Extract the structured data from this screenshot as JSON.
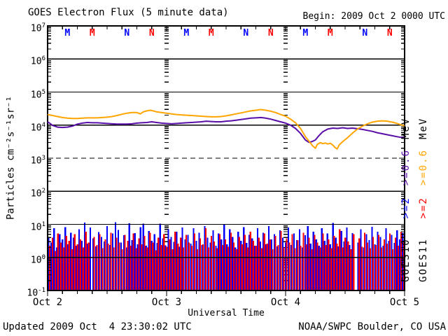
{
  "footer": {
    "updated": "Updated 2009 Oct  4 23:30:02 UTC",
    "credit": "NOAA/SWPC Boulder, CO USA"
  },
  "chart_data": {
    "type": "line",
    "title": "GOES Electron Flux (5 minute data)",
    "begin_label": "Begin: 2009 Oct 2 0000 UTC",
    "xlabel": "Universal Time",
    "ylabel": "Particles cm⁻²s⁻¹sr⁻¹",
    "x_axis": {
      "hours_total": 72,
      "minor_tick_hours": 3,
      "day_labels": [
        "Oct 2",
        "Oct 3",
        "Oct 4",
        "Oct 5"
      ],
      "day_start_hours": [
        0,
        24,
        48,
        72
      ]
    },
    "y_axis": {
      "scale": "log10",
      "min_exp": -1,
      "max_exp": 7,
      "tick_exps": [
        7,
        6,
        5,
        4,
        3,
        2,
        1,
        0,
        -1
      ]
    },
    "gridlines": {
      "solid_exps": [
        6,
        5,
        4,
        2,
        1,
        0
      ],
      "dashed_exps": [
        3
      ],
      "vertical_day_hours": [
        24,
        48
      ]
    },
    "colors": {
      "goes10_e2": "#0000FF",
      "goes10_e06": "#5A0EA8",
      "goes11_e2": "#FF0000",
      "goes11_e06": "#FFA500",
      "axis": "#000000",
      "background": "#FFFFFF"
    },
    "markers": {
      "meaning": "satellite local midnight (M) and local noon (N)",
      "per_day_hours": [
        4,
        9,
        16,
        21
      ],
      "letters": [
        "M",
        "M",
        "N",
        "N"
      ],
      "color_keys": [
        "goes10_e2",
        "goes11_e2",
        "goes10_e2",
        "goes11_e2"
      ],
      "y_log": 6.81
    },
    "series": [
      {
        "name": "GOES10 >=0.6 MeV",
        "style": "line",
        "color_key": "goes10_e06",
        "points_h_log10": [
          [
            0,
            4.1
          ],
          [
            0.5,
            4.05
          ],
          [
            1,
            3.99
          ],
          [
            2,
            3.94
          ],
          [
            3,
            3.93
          ],
          [
            4,
            3.94
          ],
          [
            5,
            3.97
          ],
          [
            6,
            4.03
          ],
          [
            7,
            4.06
          ],
          [
            8,
            4.08
          ],
          [
            9,
            4.07
          ],
          [
            10,
            4.07
          ],
          [
            11,
            4.06
          ],
          [
            12,
            4.05
          ],
          [
            13,
            4.04
          ],
          [
            14,
            4.03
          ],
          [
            15,
            4.03
          ],
          [
            16,
            4.03
          ],
          [
            17,
            4.04
          ],
          [
            18,
            4.06
          ],
          [
            19,
            4.07
          ],
          [
            20,
            4.08
          ],
          [
            21,
            4.1
          ],
          [
            22,
            4.08
          ],
          [
            23,
            4.06
          ],
          [
            24,
            4.05
          ],
          [
            25,
            4.04
          ],
          [
            26,
            4.05
          ],
          [
            27,
            4.06
          ],
          [
            28,
            4.07
          ],
          [
            29,
            4.08
          ],
          [
            30,
            4.09
          ],
          [
            31,
            4.1
          ],
          [
            32,
            4.12
          ],
          [
            33,
            4.11
          ],
          [
            34,
            4.1
          ],
          [
            35,
            4.1
          ],
          [
            36,
            4.12
          ],
          [
            37,
            4.13
          ],
          [
            38,
            4.15
          ],
          [
            39,
            4.17
          ],
          [
            40,
            4.19
          ],
          [
            41,
            4.21
          ],
          [
            42,
            4.22
          ],
          [
            43,
            4.23
          ],
          [
            44,
            4.21
          ],
          [
            45,
            4.18
          ],
          [
            46,
            4.14
          ],
          [
            47,
            4.1
          ],
          [
            48,
            4.06
          ],
          [
            49,
            4.0
          ],
          [
            50,
            3.9
          ],
          [
            51,
            3.75
          ],
          [
            52,
            3.55
          ],
          [
            52.7,
            3.48
          ],
          [
            53.3,
            3.5
          ],
          [
            54,
            3.55
          ],
          [
            54.7,
            3.68
          ],
          [
            55.5,
            3.8
          ],
          [
            56.5,
            3.88
          ],
          [
            57.5,
            3.91
          ],
          [
            58.5,
            3.9
          ],
          [
            59.5,
            3.92
          ],
          [
            60.5,
            3.9
          ],
          [
            61.5,
            3.91
          ],
          [
            62.5,
            3.89
          ],
          [
            63.5,
            3.87
          ],
          [
            64.5,
            3.84
          ],
          [
            65.5,
            3.81
          ],
          [
            66.5,
            3.77
          ],
          [
            67.5,
            3.74
          ],
          [
            68.5,
            3.71
          ],
          [
            69.5,
            3.68
          ],
          [
            70.5,
            3.65
          ],
          [
            71.2,
            3.63
          ],
          [
            72,
            3.64
          ]
        ]
      },
      {
        "name": "GOES11 >=0.6 MeV",
        "style": "line",
        "color_key": "goes11_e06",
        "points_h_log10": [
          [
            0,
            4.32
          ],
          [
            1,
            4.29
          ],
          [
            2,
            4.26
          ],
          [
            3,
            4.23
          ],
          [
            4,
            4.21
          ],
          [
            5,
            4.2
          ],
          [
            6,
            4.2
          ],
          [
            7,
            4.21
          ],
          [
            8,
            4.22
          ],
          [
            9,
            4.22
          ],
          [
            10,
            4.22
          ],
          [
            11,
            4.23
          ],
          [
            12,
            4.24
          ],
          [
            13,
            4.26
          ],
          [
            14,
            4.29
          ],
          [
            15,
            4.33
          ],
          [
            16,
            4.36
          ],
          [
            17,
            4.38
          ],
          [
            18,
            4.38
          ],
          [
            18.7,
            4.34
          ],
          [
            19.3,
            4.4
          ],
          [
            20,
            4.43
          ],
          [
            20.7,
            4.45
          ],
          [
            21.3,
            4.43
          ],
          [
            22,
            4.4
          ],
          [
            23,
            4.38
          ],
          [
            24,
            4.36
          ],
          [
            25,
            4.34
          ],
          [
            26,
            4.32
          ],
          [
            27,
            4.31
          ],
          [
            28,
            4.3
          ],
          [
            29,
            4.29
          ],
          [
            30,
            4.28
          ],
          [
            31,
            4.27
          ],
          [
            32,
            4.26
          ],
          [
            33,
            4.25
          ],
          [
            34,
            4.25
          ],
          [
            35,
            4.26
          ],
          [
            36,
            4.28
          ],
          [
            37,
            4.31
          ],
          [
            38,
            4.34
          ],
          [
            39,
            4.37
          ],
          [
            40,
            4.4
          ],
          [
            41,
            4.43
          ],
          [
            42,
            4.45
          ],
          [
            43,
            4.47
          ],
          [
            43.5,
            4.46
          ],
          [
            44,
            4.45
          ],
          [
            45,
            4.42
          ],
          [
            46,
            4.38
          ],
          [
            47,
            4.32
          ],
          [
            48,
            4.27
          ],
          [
            49,
            4.18
          ],
          [
            50,
            4.07
          ],
          [
            51,
            3.9
          ],
          [
            52,
            3.65
          ],
          [
            52.8,
            3.5
          ],
          [
            53.4,
            3.38
          ],
          [
            54,
            3.3
          ],
          [
            54.4,
            3.42
          ],
          [
            55,
            3.47
          ],
          [
            55.5,
            3.44
          ],
          [
            56,
            3.46
          ],
          [
            56.5,
            3.43
          ],
          [
            57,
            3.45
          ],
          [
            57.5,
            3.4
          ],
          [
            58,
            3.32
          ],
          [
            58.4,
            3.28
          ],
          [
            58.8,
            3.4
          ],
          [
            59.5,
            3.5
          ],
          [
            60.5,
            3.62
          ],
          [
            61.5,
            3.76
          ],
          [
            62.5,
            3.88
          ],
          [
            63.5,
            3.97
          ],
          [
            64.5,
            4.04
          ],
          [
            65.5,
            4.09
          ],
          [
            66.5,
            4.12
          ],
          [
            67.5,
            4.13
          ],
          [
            68.5,
            4.12
          ],
          [
            69.5,
            4.09
          ],
          [
            70.5,
            4.05
          ],
          [
            71.3,
            4.01
          ],
          [
            72,
            3.98
          ]
        ]
      },
      {
        "name": "GOES10 >=2 MeV",
        "style": "bars",
        "color_key": "goes10_e2",
        "bars_log10": [
          0.62,
          0.45,
          0.88,
          0.3,
          0.7,
          0.55,
          0.92,
          0.4,
          0.75,
          0.6,
          0.35,
          0.85,
          0.5,
          1.05,
          0.42,
          0.9,
          0.58,
          0.33,
          0.77,
          0.62,
          0.48,
          0.95,
          0.38,
          0.72,
          1.06,
          0.83,
          0.45,
          0.67,
          0.3,
          1.03,
          0.52,
          0.74,
          0.4,
          0.92,
          1.02,
          0.35,
          0.8,
          0.5,
          0.7,
          0.44,
          1.02,
          0.58,
          0.36,
          0.85,
          0.62,
          0.47,
          0.78,
          0.32,
          0.9,
          0.55,
          0.68,
          0.42,
          0.88,
          0.5,
          0.75,
          0.38,
          0.95,
          0.6,
          0.45,
          0.82,
          0.35,
          0.72,
          0.55,
          1.0,
          0.4,
          0.85,
          0.62,
          0.3,
          0.78,
          0.5,
          0.92,
          0.44,
          0.68,
          0.58,
          0.35,
          0.88,
          0.48,
          0.75,
          0.4,
          0.95,
          0.55,
          0.7,
          0.33,
          0.82,
          0.6,
          0.45,
          0.9,
          0.38,
          0.73,
          0.52,
          0.85,
          0.3,
          0.67,
          0.95,
          0.42,
          0.78,
          0.55,
          0.35,
          0.88,
          0.5,
          0.72,
          0.4,
          1.04,
          0.6,
          0.33,
          0.8,
          0.48,
          0.9,
          0.38,
          0.74,
          -0.9,
          0.45,
          0.85,
          0.3,
          0.7,
          0.52,
          0.93,
          0.4,
          0.78,
          0.62,
          0.35,
          0.88,
          0.5,
          0.68,
          0.44,
          0.82,
          0.55,
          0.75
        ]
      },
      {
        "name": "GOES11 >=2 MeV",
        "style": "bars",
        "color_key": "goes11_e2",
        "bars_log10": [
          0.35,
          0.6,
          0.2,
          0.72,
          0.45,
          0.3,
          0.65,
          0.5,
          0.25,
          0.7,
          0.4,
          0.55,
          0.3,
          0.78,
          0.45,
          -0.9,
          0.62,
          0.38,
          0.7,
          0.28,
          0.55,
          0.42,
          0.75,
          0.3,
          0.6,
          0.45,
          0.25,
          0.68,
          0.5,
          0.35,
          0.72,
          0.28,
          0.58,
          0.4,
          0.65,
          0.3,
          0.75,
          0.45,
          0.22,
          0.6,
          0.38,
          0.7,
          0.32,
          0.55,
          0.25,
          0.78,
          0.42,
          0.6,
          0.3,
          0.68,
          0.45,
          0.35,
          0.72,
          0.25,
          0.58,
          0.4,
          0.88,
          0.3,
          0.65,
          0.48,
          0.28,
          0.7,
          0.38,
          0.55,
          0.32,
          0.75,
          0.45,
          0.25,
          0.62,
          0.4,
          0.68,
          0.3,
          0.78,
          0.5,
          0.35,
          0.6,
          0.28,
          0.72,
          0.42,
          0.55,
          0.25,
          0.65,
          0.38,
          0.8,
          0.3,
          0.58,
          0.45,
          0.7,
          0.28,
          0.52,
          0.35,
          0.75,
          0.4,
          0.6,
          0.25,
          0.68,
          0.45,
          0.3,
          0.72,
          0.38,
          0.55,
          0.28,
          0.65,
          0.42,
          0.85,
          0.3,
          0.6,
          0.48,
          0.25,
          0.7,
          -0.9,
          0.58,
          0.32,
          0.75,
          0.45,
          0.28,
          0.62,
          0.38,
          0.68,
          0.3,
          0.55,
          0.42,
          0.72,
          0.25,
          0.6,
          0.35,
          0.78,
          0.5
        ]
      }
    ],
    "legend": {
      "columns": [
        {
          "satellite": "GOES10",
          "e2_label": ">=2",
          "e06_label": ">=0.6",
          "mev_label": "MeV",
          "e2_color_key": "goes10_e2",
          "e06_color_key": "goes10_e06"
        },
        {
          "satellite": "GOES11",
          "e2_label": ">=2",
          "e06_label": ">=0.6",
          "mev_label": "MeV",
          "e2_color_key": "goes11_e2",
          "e06_color_key": "goes11_e06"
        }
      ]
    }
  }
}
